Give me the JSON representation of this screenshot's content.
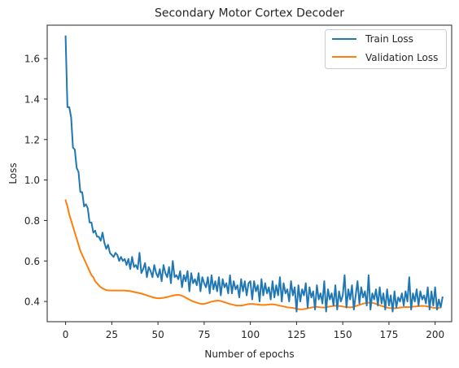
{
  "chart_data": {
    "type": "line",
    "title": "Secondary Motor Cortex Decoder",
    "xlabel": "Number of epochs",
    "ylabel": "Loss",
    "xlim": [
      -9.95,
      208.95
    ],
    "ylim": [
      0.3,
      1.765
    ],
    "xticks": [
      0,
      25,
      50,
      75,
      100,
      125,
      150,
      175,
      200
    ],
    "xtick_labels": [
      "0",
      "25",
      "50",
      "75",
      "100",
      "125",
      "150",
      "175",
      "200"
    ],
    "yticks": [
      0.4,
      0.6,
      0.8,
      1.0,
      1.2,
      1.4,
      1.6
    ],
    "ytick_labels": [
      "0.4",
      "0.6",
      "0.8",
      "1.0",
      "1.2",
      "1.4",
      "1.6"
    ],
    "grid": false,
    "legend_position": "top-right",
    "series": [
      {
        "name": "Train Loss",
        "color": "#1f77b4",
        "x_start": 0,
        "x_step": 1,
        "values": [
          1.71,
          1.36,
          1.36,
          1.31,
          1.16,
          1.15,
          1.06,
          1.04,
          0.94,
          0.94,
          0.87,
          0.88,
          0.86,
          0.79,
          0.79,
          0.74,
          0.75,
          0.72,
          0.72,
          0.7,
          0.74,
          0.69,
          0.66,
          0.68,
          0.64,
          0.63,
          0.62,
          0.64,
          0.63,
          0.6,
          0.62,
          0.6,
          0.61,
          0.58,
          0.61,
          0.56,
          0.62,
          0.57,
          0.58,
          0.56,
          0.64,
          0.54,
          0.56,
          0.59,
          0.52,
          0.57,
          0.55,
          0.52,
          0.58,
          0.54,
          0.52,
          0.56,
          0.5,
          0.58,
          0.54,
          0.52,
          0.57,
          0.49,
          0.6,
          0.52,
          0.53,
          0.51,
          0.55,
          0.47,
          0.53,
          0.5,
          0.55,
          0.45,
          0.54,
          0.49,
          0.51,
          0.48,
          0.54,
          0.45,
          0.52,
          0.49,
          0.47,
          0.52,
          0.44,
          0.53,
          0.46,
          0.5,
          0.45,
          0.52,
          0.43,
          0.51,
          0.47,
          0.49,
          0.44,
          0.53,
          0.44,
          0.5,
          0.46,
          0.48,
          0.42,
          0.51,
          0.45,
          0.5,
          0.43,
          0.49,
          0.5,
          0.41,
          0.5,
          0.45,
          0.48,
          0.4,
          0.51,
          0.43,
          0.49,
          0.44,
          0.47,
          0.41,
          0.5,
          0.42,
          0.48,
          0.43,
          0.52,
          0.4,
          0.49,
          0.44,
          0.46,
          0.4,
          0.5,
          0.43,
          0.47,
          0.35,
          0.48,
          0.4,
          0.46,
          0.43,
          0.49,
          0.37,
          0.47,
          0.42,
          0.45,
          0.36,
          0.48,
          0.41,
          0.44,
          0.39,
          0.5,
          0.35,
          0.46,
          0.41,
          0.44,
          0.38,
          0.48,
          0.36,
          0.45,
          0.4,
          0.43,
          0.53,
          0.37,
          0.46,
          0.41,
          0.48,
          0.36,
          0.43,
          0.5,
          0.39,
          0.47,
          0.42,
          0.45,
          0.38,
          0.53,
          0.36,
          0.44,
          0.41,
          0.46,
          0.38,
          0.47,
          0.39,
          0.44,
          0.36,
          0.46,
          0.38,
          0.43,
          0.35,
          0.45,
          0.37,
          0.42,
          0.4,
          0.44,
          0.38,
          0.45,
          0.4,
          0.52,
          0.36,
          0.44,
          0.4,
          0.46,
          0.38,
          0.45,
          0.41,
          0.43,
          0.39,
          0.47,
          0.36,
          0.45,
          0.38,
          0.47,
          0.36,
          0.41,
          0.37,
          0.42
        ]
      },
      {
        "name": "Validation Loss",
        "color": "#ff7f0e",
        "x_start": 0,
        "x_step": 1,
        "values": [
          0.9,
          0.87,
          0.83,
          0.8,
          0.77,
          0.74,
          0.71,
          0.68,
          0.65,
          0.63,
          0.61,
          0.59,
          0.57,
          0.55,
          0.53,
          0.52,
          0.5,
          0.49,
          0.48,
          0.47,
          0.465,
          0.46,
          0.456,
          0.455,
          0.454,
          0.454,
          0.454,
          0.454,
          0.454,
          0.454,
          0.454,
          0.454,
          0.454,
          0.453,
          0.452,
          0.451,
          0.449,
          0.447,
          0.445,
          0.443,
          0.441,
          0.439,
          0.436,
          0.433,
          0.43,
          0.427,
          0.424,
          0.421,
          0.419,
          0.417,
          0.416,
          0.416,
          0.417,
          0.418,
          0.42,
          0.422,
          0.424,
          0.427,
          0.429,
          0.431,
          0.432,
          0.432,
          0.431,
          0.428,
          0.424,
          0.419,
          0.414,
          0.409,
          0.404,
          0.4,
          0.397,
          0.394,
          0.391,
          0.389,
          0.388,
          0.388,
          0.39,
          0.393,
          0.396,
          0.399,
          0.401,
          0.403,
          0.404,
          0.404,
          0.402,
          0.399,
          0.396,
          0.393,
          0.39,
          0.387,
          0.385,
          0.383,
          0.381,
          0.38,
          0.38,
          0.38,
          0.381,
          0.383,
          0.385,
          0.387,
          0.388,
          0.388,
          0.387,
          0.386,
          0.385,
          0.384,
          0.383,
          0.383,
          0.383,
          0.384,
          0.385,
          0.386,
          0.386,
          0.385,
          0.383,
          0.381,
          0.379,
          0.377,
          0.375,
          0.373,
          0.371,
          0.37,
          0.369,
          0.368,
          0.366,
          0.364,
          0.362,
          0.361,
          0.361,
          0.362,
          0.364,
          0.366,
          0.368,
          0.37,
          0.372,
          0.373,
          0.373,
          0.372,
          0.371,
          0.37,
          0.37,
          0.371,
          0.373,
          0.375,
          0.377,
          0.378,
          0.379,
          0.379,
          0.378,
          0.377,
          0.375,
          0.373,
          0.372,
          0.371,
          0.371,
          0.372,
          0.374,
          0.377,
          0.38,
          0.383,
          0.386,
          0.389,
          0.391,
          0.393,
          0.394,
          0.394,
          0.393,
          0.391,
          0.388,
          0.385,
          0.381,
          0.378,
          0.375,
          0.372,
          0.37,
          0.368,
          0.367,
          0.366,
          0.366,
          0.367,
          0.368,
          0.37,
          0.371,
          0.372,
          0.372,
          0.372,
          0.372,
          0.373,
          0.374,
          0.375,
          0.376,
          0.377,
          0.378,
          0.378,
          0.378,
          0.377,
          0.375,
          0.373,
          0.371,
          0.369,
          0.368,
          0.367,
          0.367
        ]
      }
    ]
  }
}
